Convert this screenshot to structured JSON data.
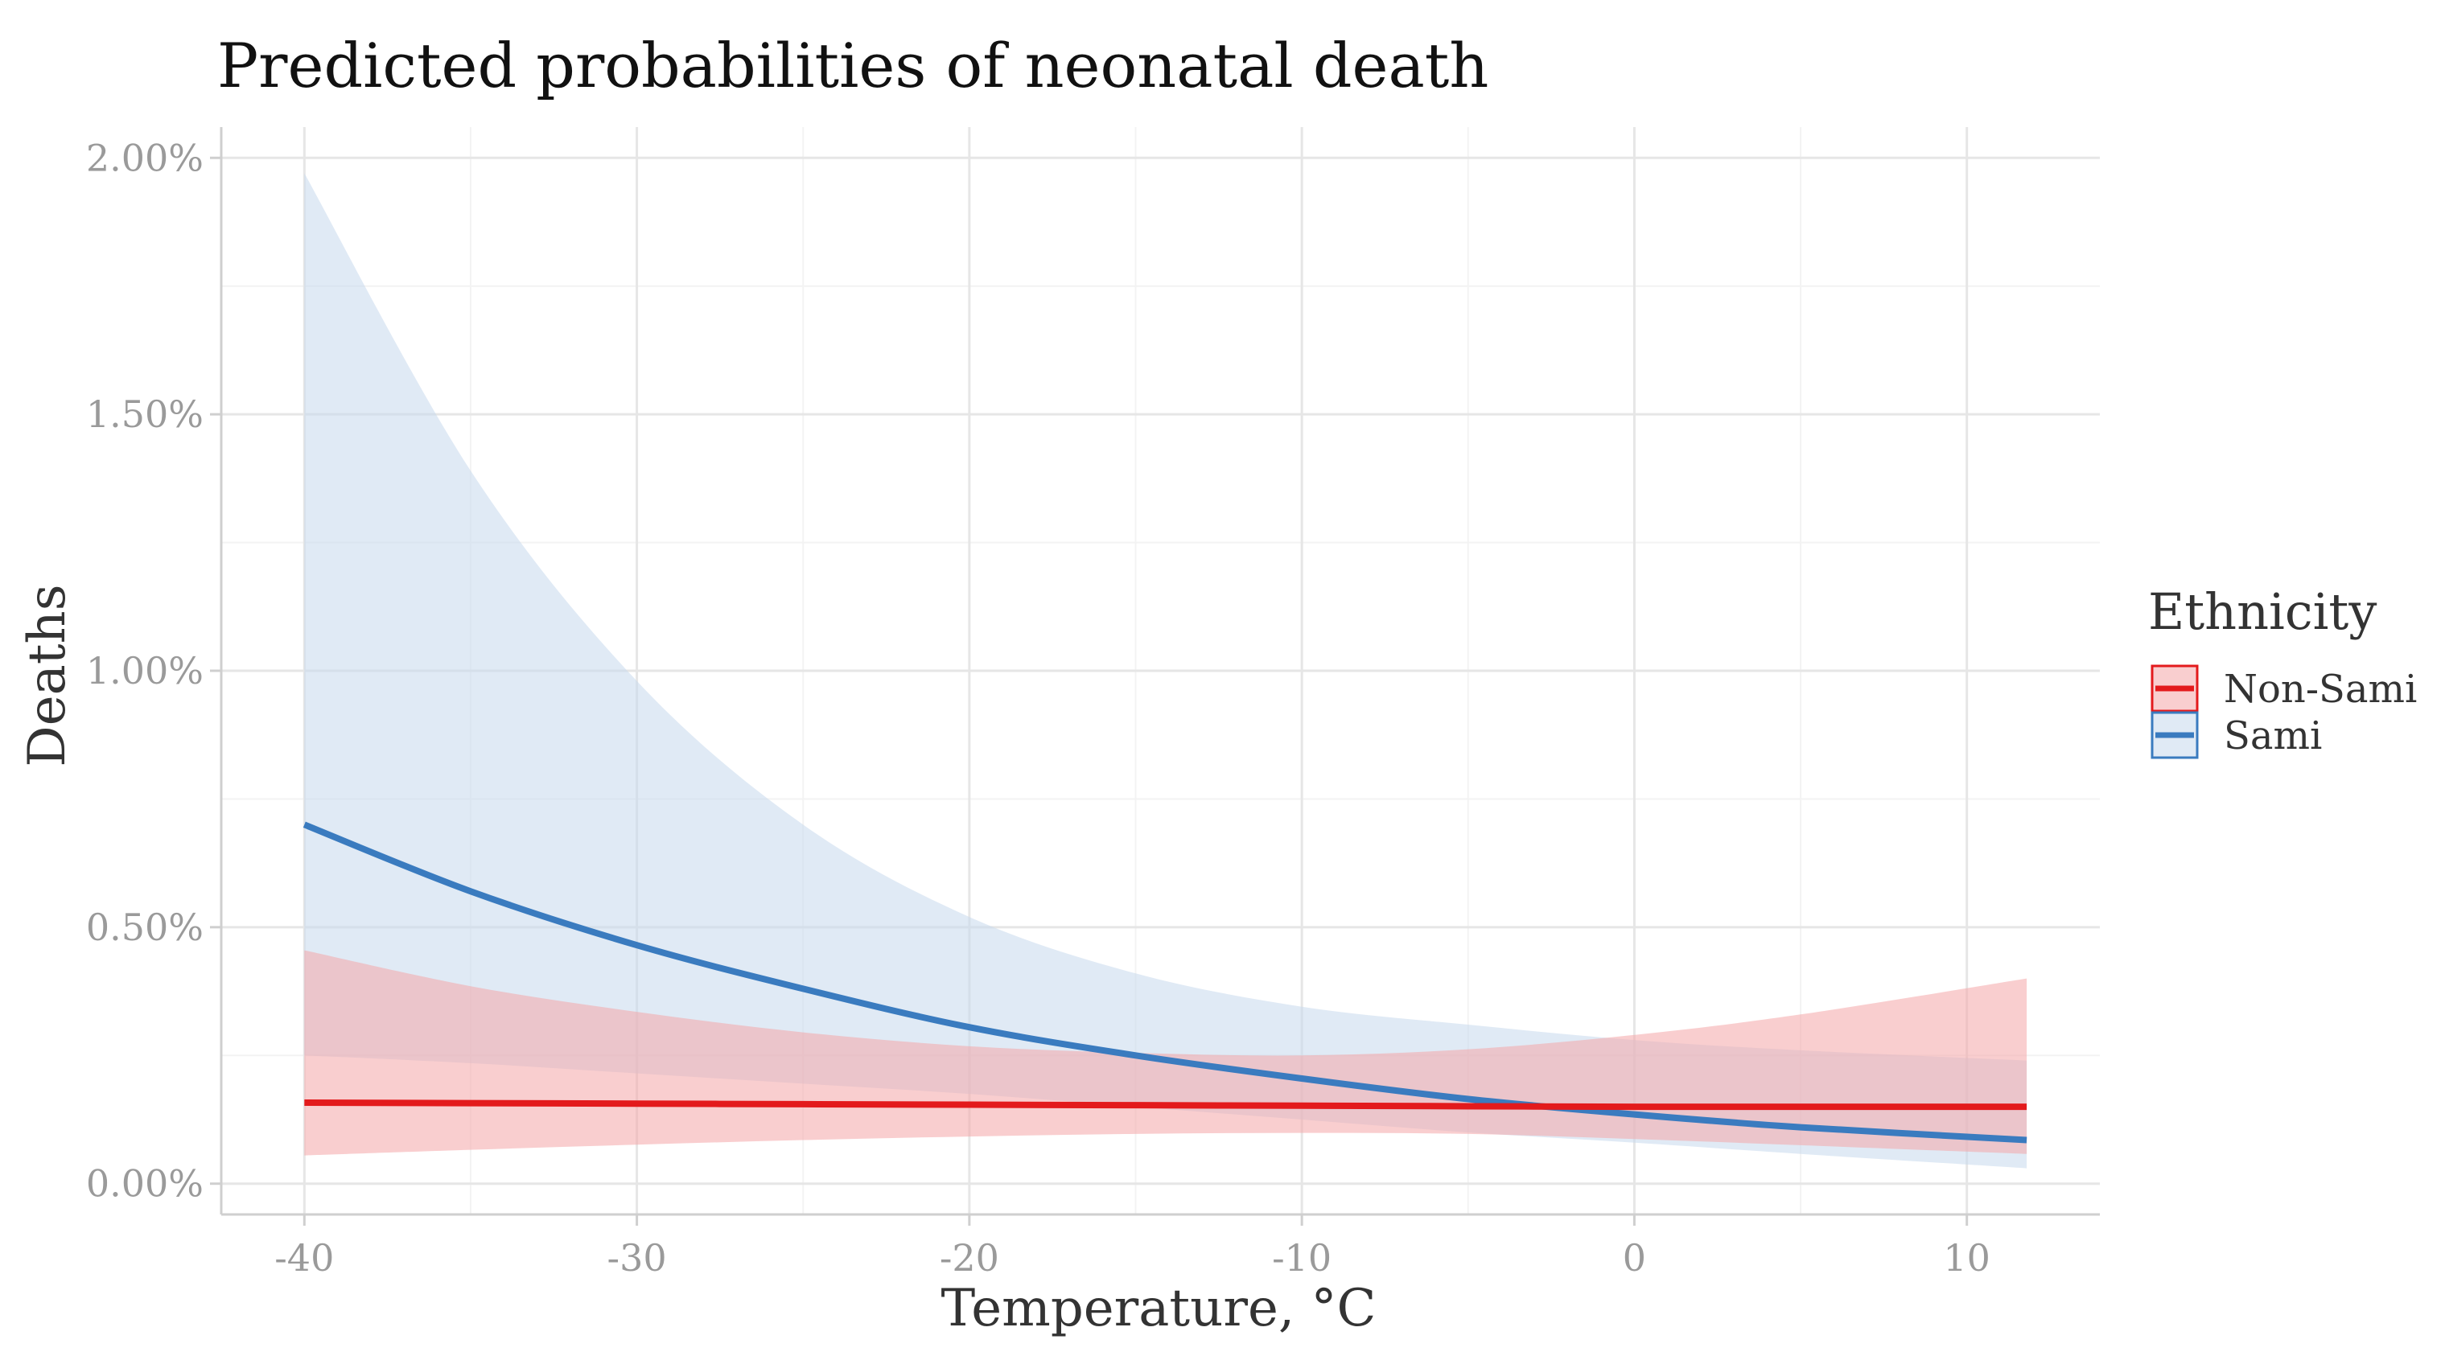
{
  "chart_data": {
    "type": "line",
    "title": "Predicted probabilities of neonatal death",
    "xlabel": "Temperature, °C",
    "ylabel": "Deaths",
    "xlim": [
      -42.5,
      14
    ],
    "ylim": [
      -0.06,
      2.06
    ],
    "x_ticks": [
      -40,
      -30,
      -20,
      -10,
      0,
      10
    ],
    "x_tick_labels": [
      "-40",
      "-30",
      "-20",
      "-10",
      "0",
      "10"
    ],
    "y_ticks": [
      0,
      0.5,
      1.0,
      1.5,
      2.0
    ],
    "y_tick_labels": [
      "0.00%",
      "0.50%",
      "1.00%",
      "1.50%",
      "2.00%"
    ],
    "legend_title": "Ethnicity",
    "legend_position": "right",
    "grid": true,
    "series": [
      {
        "name": "Non-Sami",
        "color": "#e31a1c",
        "fill": "#f4a6a8",
        "x": [
          -40,
          -35,
          -30,
          -25,
          -20,
          -15,
          -10,
          -5,
          0,
          5,
          11.8
        ],
        "y": [
          0.158,
          0.157,
          0.156,
          0.155,
          0.154,
          0.153,
          0.152,
          0.151,
          0.15,
          0.15,
          0.15
        ],
        "lower": [
          0.055,
          0.066,
          0.076,
          0.085,
          0.092,
          0.097,
          0.099,
          0.097,
          0.087,
          0.075,
          0.058
        ],
        "upper": [
          0.455,
          0.385,
          0.335,
          0.295,
          0.268,
          0.255,
          0.25,
          0.262,
          0.29,
          0.33,
          0.4
        ]
      },
      {
        "name": "Sami",
        "color": "#3a7bbf",
        "fill": "#c6d9ec",
        "x": [
          -40,
          -35,
          -30,
          -25,
          -20,
          -15,
          -10,
          -5,
          0,
          5,
          11.8
        ],
        "y": [
          0.7,
          0.57,
          0.465,
          0.38,
          0.305,
          0.25,
          0.205,
          0.165,
          0.135,
          0.11,
          0.085
        ],
        "lower": [
          0.25,
          0.235,
          0.215,
          0.195,
          0.175,
          0.15,
          0.125,
          0.1,
          0.08,
          0.058,
          0.03
        ],
        "upper": [
          1.97,
          1.39,
          0.98,
          0.7,
          0.52,
          0.41,
          0.345,
          0.31,
          0.28,
          0.26,
          0.24
        ]
      }
    ]
  }
}
